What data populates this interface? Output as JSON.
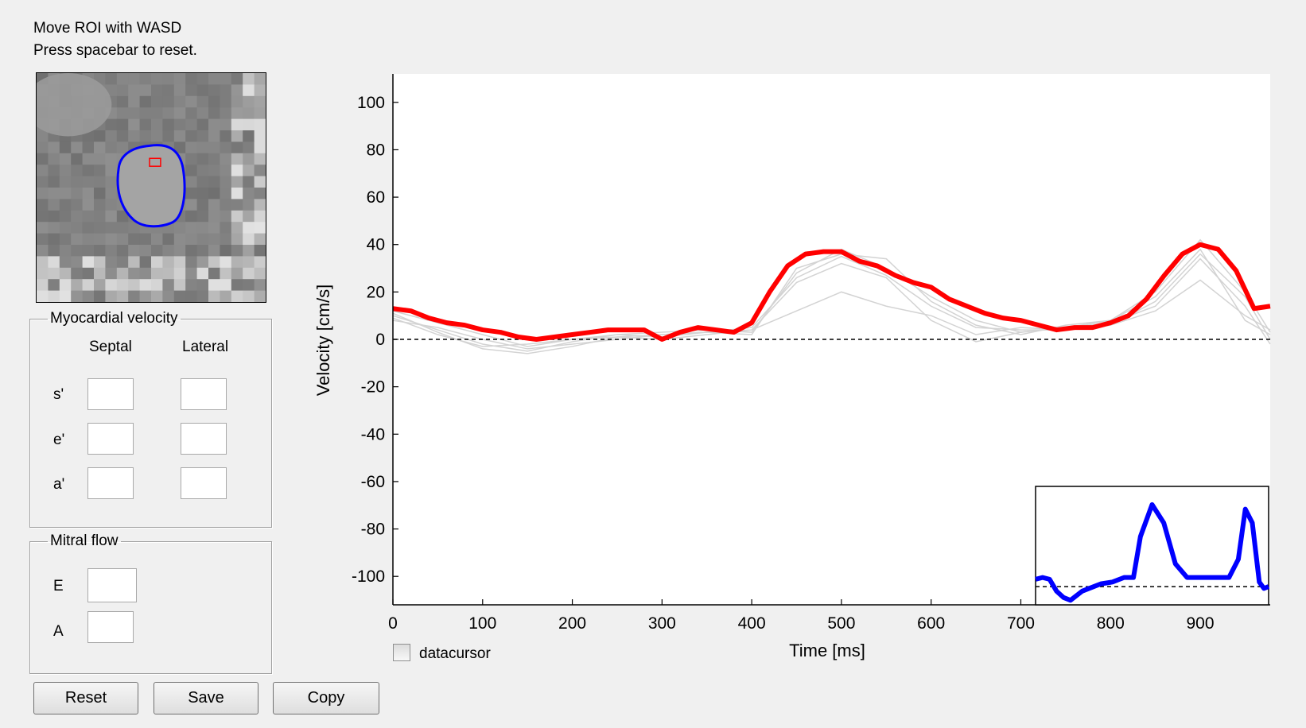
{
  "instructions": {
    "line1": "Move ROI with WASD",
    "line2": "Press spacebar to reset."
  },
  "myocardial": {
    "title": "Myocardial velocity",
    "col_septal": "Septal",
    "col_lateral": "Lateral",
    "rows": [
      {
        "label": "s'",
        "septal": "",
        "lateral": ""
      },
      {
        "label": "e'",
        "septal": "",
        "lateral": ""
      },
      {
        "label": "a'",
        "septal": "",
        "lateral": ""
      }
    ]
  },
  "mitral": {
    "title": "Mitral flow",
    "rows": [
      {
        "label": "E",
        "value": ""
      },
      {
        "label": "A",
        "value": ""
      }
    ]
  },
  "buttons": {
    "reset": "Reset",
    "save": "Save",
    "copy": "Copy"
  },
  "datacursor": {
    "label": "datacursor",
    "checked": false
  },
  "colors": {
    "main_series": "#ff0000",
    "inset_series": "#0000ff",
    "background_traces": "#d3d3d3",
    "roi_contour": "#0000ff",
    "roi_marker": "#ff0000"
  },
  "chart_data": [
    {
      "type": "line",
      "xlabel": "Time [ms]",
      "ylabel": "Velocity [cm/s]",
      "xlim": [
        0,
        978
      ],
      "ylim": [
        -112,
        112
      ],
      "xticks": [
        0,
        100,
        200,
        300,
        400,
        500,
        600,
        700,
        800,
        900
      ],
      "yticks": [
        -100,
        -80,
        -60,
        -40,
        -20,
        0,
        20,
        40,
        60,
        80,
        100
      ],
      "zero_line": "dashed",
      "series": [
        {
          "x": [
            0,
            20,
            40,
            60,
            80,
            100,
            120,
            140,
            160,
            180,
            200,
            220,
            240,
            260,
            280,
            300,
            320,
            340,
            360,
            380,
            400,
            420,
            440,
            460,
            480,
            500,
            520,
            540,
            560,
            580,
            600,
            620,
            640,
            660,
            680,
            700,
            720,
            740,
            760,
            780,
            800,
            820,
            840,
            860,
            880,
            900,
            920,
            940,
            960,
            978
          ],
          "y": [
            13,
            12,
            9,
            7,
            6,
            4,
            3,
            1,
            0,
            1,
            2,
            3,
            4,
            4,
            4,
            0,
            3,
            5,
            4,
            3,
            7,
            20,
            31,
            36,
            37,
            37,
            33,
            31,
            27,
            24,
            22,
            17,
            14,
            11,
            9,
            8,
            6,
            4,
            5,
            5,
            7,
            10,
            17,
            27,
            36,
            40,
            38,
            29,
            13,
            14
          ]
        }
      ],
      "background_series": [
        {
          "x": [
            0,
            50,
            100,
            150,
            200,
            250,
            300,
            350,
            400,
            450,
            500,
            550,
            600,
            650,
            700,
            750,
            800,
            850,
            900,
            950,
            978
          ],
          "y": [
            12,
            7,
            2,
            -3,
            0,
            2,
            1,
            3,
            4,
            12,
            20,
            14,
            10,
            2,
            5,
            4,
            6,
            12,
            25,
            10,
            4
          ]
        },
        {
          "x": [
            0,
            50,
            100,
            150,
            200,
            250,
            300,
            350,
            400,
            450,
            500,
            550,
            600,
            650,
            700,
            750,
            800,
            850,
            900,
            950,
            978
          ],
          "y": [
            10,
            4,
            -2,
            -5,
            -1,
            2,
            3,
            4,
            3,
            28,
            38,
            30,
            18,
            8,
            3,
            5,
            8,
            20,
            42,
            20,
            3
          ]
        },
        {
          "x": [
            0,
            50,
            100,
            150,
            200,
            250,
            300,
            350,
            400,
            450,
            500,
            550,
            600,
            650,
            700,
            750,
            800,
            850,
            900,
            950,
            978
          ],
          "y": [
            11,
            3,
            -4,
            -6,
            -3,
            1,
            2,
            3,
            5,
            26,
            35,
            27,
            14,
            5,
            4,
            4,
            6,
            16,
            36,
            18,
            0
          ]
        },
        {
          "x": [
            0,
            50,
            100,
            150,
            200,
            250,
            300,
            350,
            400,
            450,
            500,
            550,
            600,
            650,
            700,
            750,
            800,
            850,
            900,
            950,
            978
          ],
          "y": [
            9,
            2,
            -3,
            -2,
            0,
            1,
            0,
            2,
            4,
            24,
            32,
            26,
            8,
            -1,
            3,
            5,
            7,
            14,
            34,
            14,
            -2
          ]
        },
        {
          "x": [
            0,
            50,
            100,
            150,
            200,
            250,
            300,
            350,
            400,
            450,
            500,
            550,
            600,
            650,
            700,
            750,
            800,
            850,
            900,
            950,
            978
          ],
          "y": [
            8,
            5,
            0,
            -4,
            -2,
            0,
            2,
            3,
            2,
            30,
            36,
            34,
            16,
            6,
            2,
            6,
            8,
            18,
            38,
            8,
            2
          ]
        }
      ]
    },
    {
      "type": "line",
      "xlim": [
        0,
        1
      ],
      "ylim": [
        -0.2,
        1.1
      ],
      "zero_line": "dashed",
      "series": [
        {
          "x": [
            0,
            0.03,
            0.06,
            0.09,
            0.12,
            0.15,
            0.2,
            0.25,
            0.28,
            0.33,
            0.38,
            0.42,
            0.45,
            0.5,
            0.55,
            0.6,
            0.65,
            0.7,
            0.75,
            0.8,
            0.83,
            0.87,
            0.9,
            0.93,
            0.96,
            0.98,
            1.0
          ],
          "y": [
            0.08,
            0.1,
            0.08,
            -0.05,
            -0.12,
            -0.15,
            -0.05,
            0.0,
            0.03,
            0.05,
            0.1,
            0.1,
            0.55,
            0.9,
            0.7,
            0.25,
            0.1,
            0.1,
            0.1,
            0.1,
            0.1,
            0.3,
            0.85,
            0.7,
            0.05,
            -0.02,
            0.0
          ]
        }
      ]
    }
  ]
}
